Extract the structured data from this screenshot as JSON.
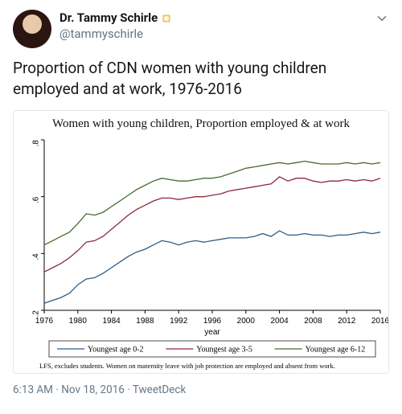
{
  "user": {
    "display_name": "Dr. Tammy Schirle",
    "handle": "@tammyschirle"
  },
  "tweet_text": "Proportion of CDN women with young children employed and at work, 1976-2016",
  "chart": {
    "type": "line",
    "title": "Women with young children, Proportion employed & at work",
    "title_fontsize": 15,
    "title_font": "serif",
    "xlabel": "year",
    "xlim": [
      1976,
      2016
    ],
    "xtick_step": 4,
    "ylim": [
      0.2,
      0.8
    ],
    "ytick_step": 0.2,
    "background_color": "#ffffff",
    "axis_color": "#000000",
    "tick_font": "sans-serif",
    "tick_fontsize": 10,
    "xlabel_fontsize": 10,
    "line_width": 1.3,
    "years": [
      1976,
      1977,
      1978,
      1979,
      1980,
      1981,
      1982,
      1983,
      1984,
      1985,
      1986,
      1987,
      1988,
      1989,
      1990,
      1991,
      1992,
      1993,
      1994,
      1995,
      1996,
      1997,
      1998,
      1999,
      2000,
      2001,
      2002,
      2003,
      2004,
      2005,
      2006,
      2007,
      2008,
      2009,
      2010,
      2011,
      2012,
      2013,
      2014,
      2015,
      2016
    ],
    "series": [
      {
        "label": "Youngest age 0-2",
        "color": "#2b5e8a",
        "values": [
          0.225,
          0.235,
          0.245,
          0.26,
          0.29,
          0.31,
          0.315,
          0.33,
          0.35,
          0.37,
          0.39,
          0.405,
          0.415,
          0.43,
          0.445,
          0.44,
          0.43,
          0.44,
          0.445,
          0.44,
          0.445,
          0.45,
          0.455,
          0.455,
          0.455,
          0.46,
          0.47,
          0.46,
          0.48,
          0.465,
          0.465,
          0.47,
          0.465,
          0.465,
          0.46,
          0.465,
          0.465,
          0.47,
          0.475,
          0.47,
          0.475
        ]
      },
      {
        "label": "Youngest age 3-5",
        "color": "#8c2a3a",
        "values": [
          0.335,
          0.35,
          0.365,
          0.385,
          0.41,
          0.44,
          0.445,
          0.46,
          0.485,
          0.51,
          0.535,
          0.555,
          0.57,
          0.585,
          0.595,
          0.595,
          0.59,
          0.595,
          0.6,
          0.6,
          0.605,
          0.61,
          0.62,
          0.625,
          0.63,
          0.635,
          0.64,
          0.645,
          0.67,
          0.655,
          0.665,
          0.665,
          0.655,
          0.65,
          0.655,
          0.655,
          0.66,
          0.655,
          0.66,
          0.655,
          0.665
        ]
      },
      {
        "label": "Youngest age 6-12",
        "color": "#4a6b2e",
        "values": [
          0.43,
          0.445,
          0.46,
          0.475,
          0.505,
          0.54,
          0.535,
          0.545,
          0.565,
          0.585,
          0.605,
          0.625,
          0.64,
          0.655,
          0.665,
          0.66,
          0.655,
          0.655,
          0.66,
          0.665,
          0.665,
          0.67,
          0.68,
          0.69,
          0.7,
          0.705,
          0.71,
          0.715,
          0.72,
          0.715,
          0.72,
          0.725,
          0.72,
          0.715,
          0.715,
          0.715,
          0.72,
          0.715,
          0.72,
          0.715,
          0.72
        ]
      }
    ],
    "legend": {
      "items": [
        "Youngest age 0-2",
        "Youngest age 3-5",
        "Youngest age 6-12"
      ],
      "fontsize": 10,
      "font": "serif",
      "border_color": "#000000"
    },
    "footnote": "LFS, excludes students. Women on maternity leave with job protection are employed and absent from work.",
    "footnote_fontsize": 8.5,
    "footnote_font": "serif"
  },
  "meta": {
    "time": "6:13 AM",
    "date": "Nov 18, 2016",
    "source": "TweetDeck"
  }
}
